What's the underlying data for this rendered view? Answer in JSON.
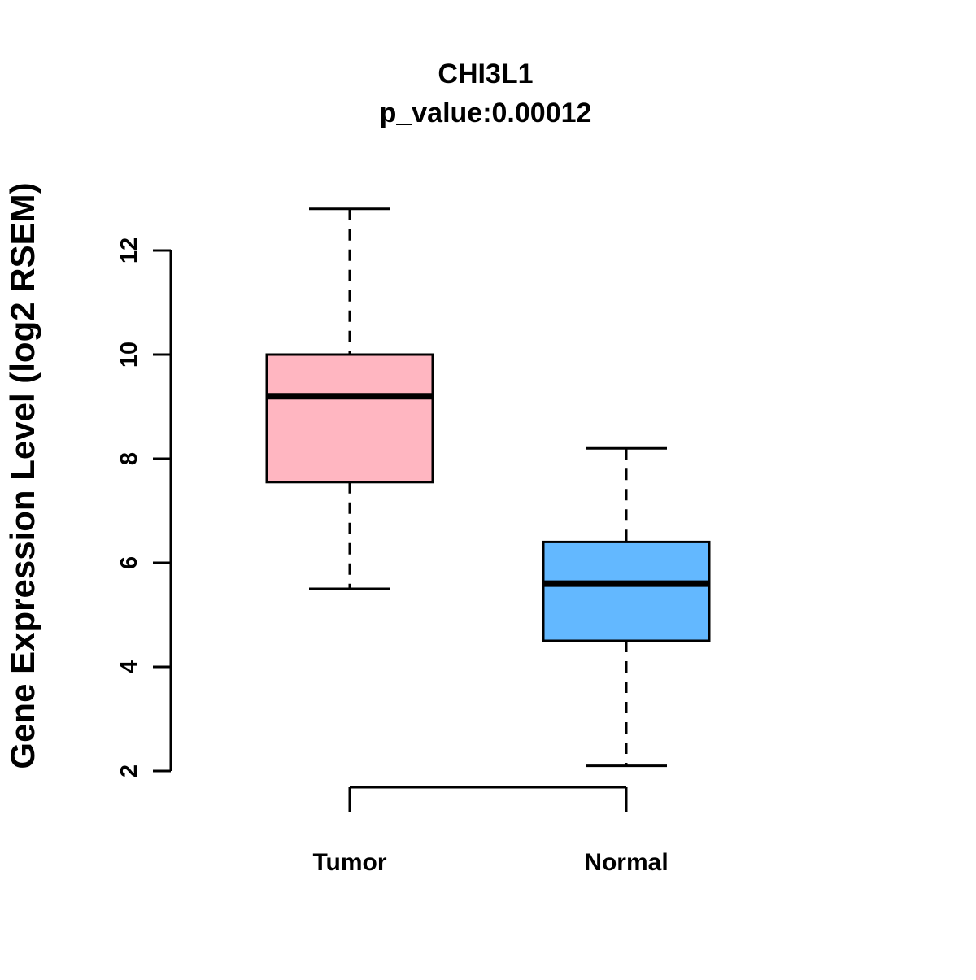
{
  "chart_data": {
    "type": "box",
    "title": "CHI3L1",
    "subtitle": "p_value:0.00012",
    "ylabel": "Gene Expression Level (log2 RSEM)",
    "categories": [
      "Tumor",
      "Normal"
    ],
    "yticks": [
      2,
      4,
      6,
      8,
      10,
      12
    ],
    "ylim": [
      2,
      12
    ],
    "grid": false,
    "legend": "none",
    "series": [
      {
        "name": "Tumor",
        "color": "#FFB6C1",
        "min": 5.5,
        "q1": 7.55,
        "median": 9.2,
        "q3": 10.0,
        "max": 12.8
      },
      {
        "name": "Normal",
        "color": "#63B8FF",
        "min": 2.1,
        "q1": 4.5,
        "median": 5.6,
        "q3": 6.4,
        "max": 8.2
      }
    ]
  }
}
